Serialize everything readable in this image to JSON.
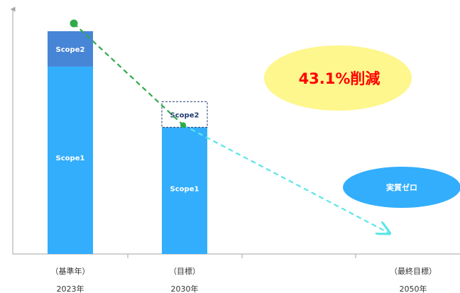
{
  "chart_data": {
    "type": "bar",
    "categories": [
      {
        "label": "（基準年）",
        "year": "2023年"
      },
      {
        "label": "（目標）",
        "year": "2030年"
      },
      {
        "label": "（最終目標）",
        "year": "2050年"
      }
    ],
    "segment_names": [
      "Scope1",
      "Scope2"
    ],
    "bars": [
      {
        "category_index": 0,
        "scope1": 84.1,
        "scope2": 15.9,
        "scope2_style": "solid"
      },
      {
        "category_index": 1,
        "scope1": 56.9,
        "scope2": 11.5,
        "scope2_style": "dashed"
      }
    ],
    "trend": {
      "from": {
        "category_index": 0,
        "value": 100
      },
      "via": {
        "category_index": 1,
        "value": 56.9
      },
      "to": {
        "category_index": 2,
        "value": 7
      }
    },
    "annotations": {
      "reduction": "43.1%削減",
      "zero": "実質ゼロ"
    },
    "ylim": [
      0,
      100
    ],
    "grid": false,
    "colors": {
      "scope1": "#33aefc",
      "scope2": "#4785d6",
      "trend_green": "#2fab4a",
      "trend_cyan": "#5ae6e8",
      "reduction_bubble": "#fdf78d",
      "reduction_text": "#ff0000",
      "zero_bubble": "#33aefc",
      "axis": "#a6a6a6"
    }
  }
}
